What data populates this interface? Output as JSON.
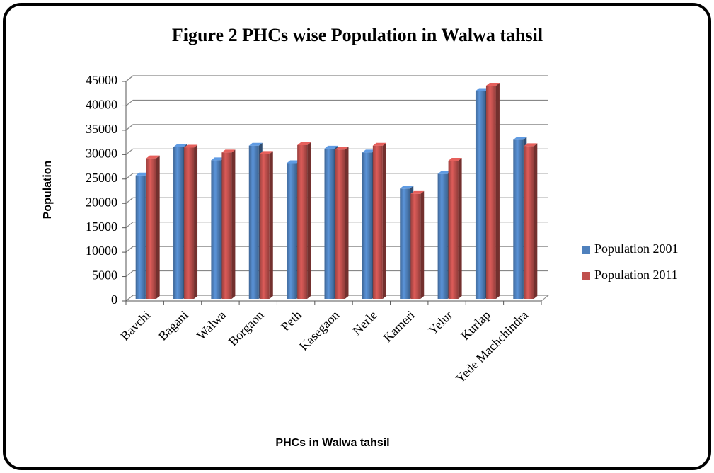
{
  "chart_data": {
    "type": "bar",
    "title": "Figure 2 PHCs wise Population in Walwa tahsil",
    "x_label": "PHCs in Walwa tahsil",
    "y_label": "Population",
    "categories": [
      "Bavchi",
      "Bagani",
      "Walwa",
      "Borgaon",
      "Peth",
      "Kasegaon",
      "Nerle",
      "Kameri",
      "Yelur",
      "Kurlap",
      "Yede Machchindra"
    ],
    "series": [
      {
        "name": "Population 2001",
        "color": "#4f81bd",
        "values": [
          25300,
          31100,
          28400,
          31400,
          27800,
          30800,
          30000,
          22600,
          25600,
          42600,
          32600
        ]
      },
      {
        "name": "Population 2011",
        "color": "#c0504d",
        "values": [
          28800,
          31000,
          30000,
          29700,
          31500,
          30600,
          31400,
          21500,
          28300,
          43700,
          31300
        ]
      }
    ],
    "ylim": [
      0,
      45000
    ],
    "yticks": [
      0,
      5000,
      10000,
      15000,
      20000,
      25000,
      30000,
      35000,
      40000,
      45000
    ],
    "grid": true,
    "legend": "right"
  }
}
